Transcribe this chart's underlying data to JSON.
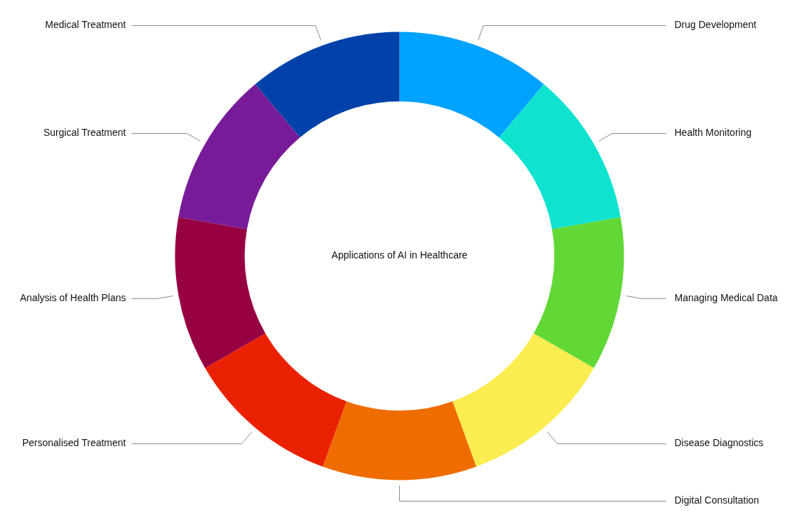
{
  "chart_data": {
    "type": "donut",
    "title": "Applications of AI in Healthcare",
    "categories": [
      "Drug Development",
      "Health Monitoring",
      "Managing Medical Data",
      "Disease Diagnostics",
      "Digital Consultation",
      "Personalised Treatment",
      "Analysis of Health Plans",
      "Surgical Treatment",
      "Medical Treatment"
    ],
    "values": [
      11.11,
      11.11,
      11.11,
      11.11,
      11.11,
      11.11,
      11.11,
      11.11,
      11.11
    ],
    "colors": [
      "#00a2ff",
      "#0fe3d0",
      "#61d836",
      "#fbec4f",
      "#ef6c00",
      "#ea2100",
      "#960042",
      "#781b98",
      "#0042aa"
    ],
    "legend": false
  }
}
